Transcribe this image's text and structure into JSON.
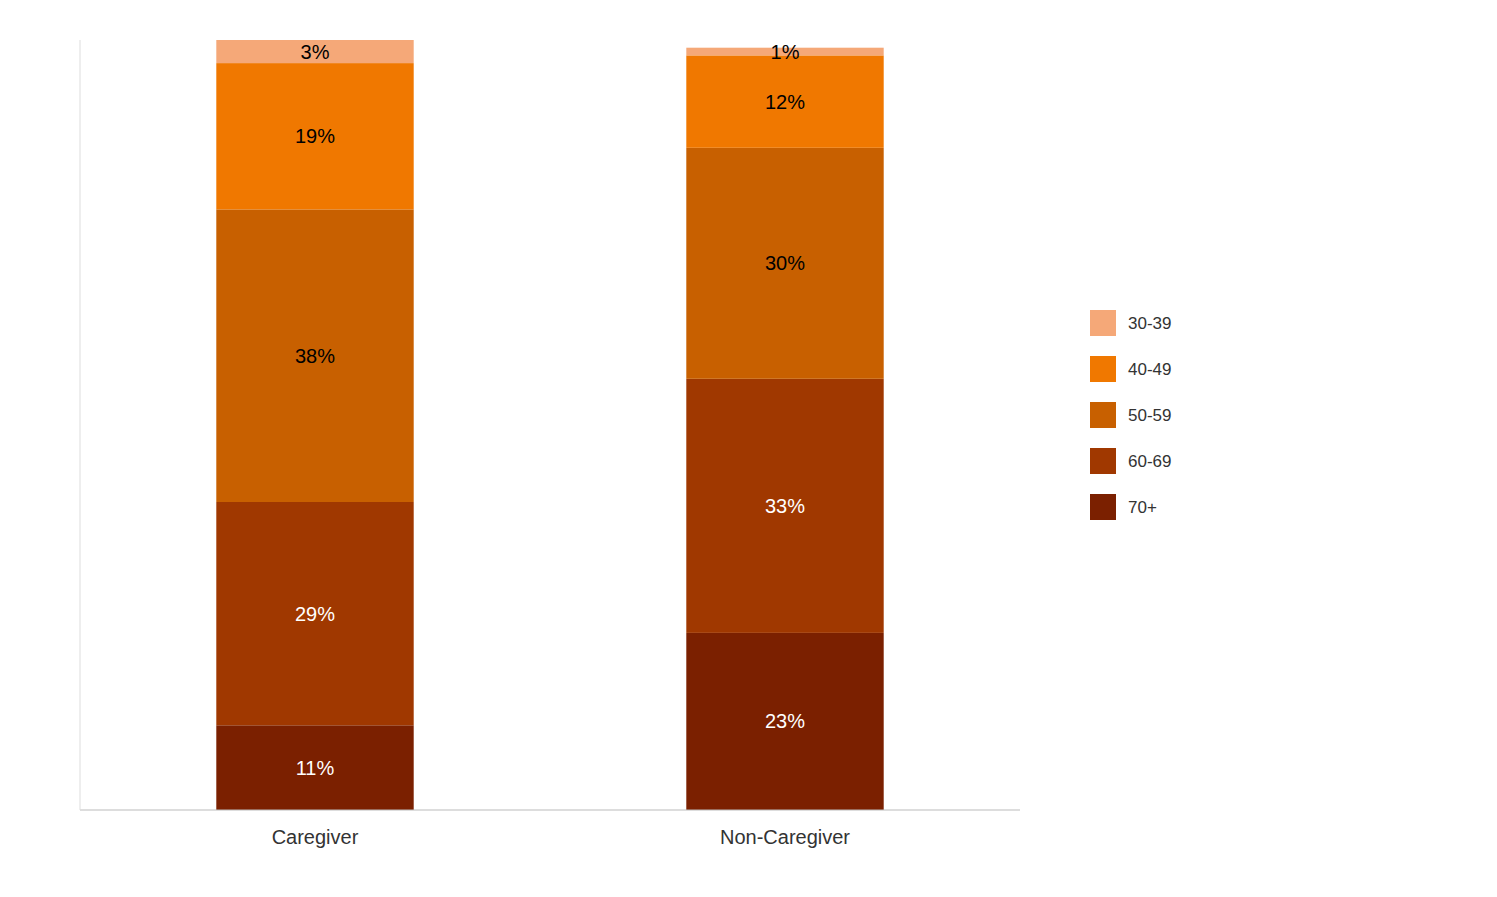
{
  "chart_data": {
    "type": "bar",
    "stacked": true,
    "data_labels": true,
    "legend": "right",
    "tick_labels": "x",
    "grid": false,
    "categories": [
      "Caregiver",
      "Non-Caregiver"
    ],
    "ylim": [
      0,
      100
    ],
    "yticks": [],
    "series": [
      {
        "name": "70+",
        "color": "#7B2000",
        "values": [
          11,
          23
        ],
        "value_labels": [
          "11%",
          "23%"
        ]
      },
      {
        "name": "60-69",
        "color": "#A03800",
        "values": [
          29,
          33
        ],
        "value_labels": [
          "29%",
          "33%"
        ]
      },
      {
        "name": "50-59",
        "color": "#C86000",
        "values": [
          38,
          30
        ],
        "value_labels": [
          "38%",
          "30%"
        ]
      },
      {
        "name": "40-49",
        "color": "#F07800",
        "values": [
          19,
          12
        ],
        "value_labels": [
          "19%",
          "12%"
        ]
      },
      {
        "name": "30-39",
        "color": "#F5A878",
        "values": [
          3,
          1
        ],
        "value_labels": [
          "3%",
          "1%"
        ]
      }
    ]
  }
}
